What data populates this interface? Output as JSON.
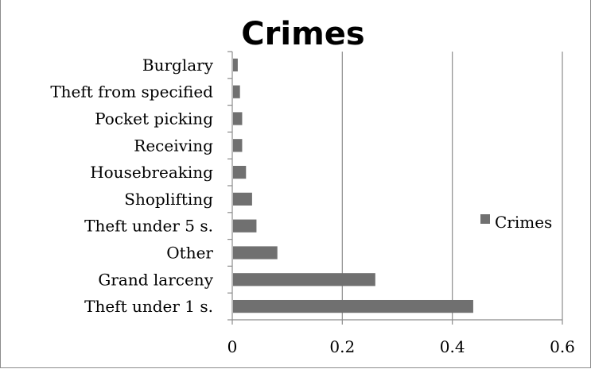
{
  "chart_data": {
    "type": "bar",
    "orientation": "horizontal",
    "title": "Crimes",
    "xlabel": "",
    "ylabel": "",
    "categories": [
      "Theft under 1 s.",
      "Grand larceny",
      "Other",
      "Theft under 5 s.",
      "Shoplifting",
      "Housebreaking",
      "Receiving",
      "Pocket picking",
      "Theft from specified",
      "Burglary"
    ],
    "series": [
      {
        "name": "Crimes",
        "values": [
          0.438,
          0.26,
          0.082,
          0.044,
          0.036,
          0.025,
          0.018,
          0.018,
          0.014,
          0.01
        ]
      }
    ],
    "xlim": [
      0,
      0.6
    ],
    "x_ticks": [
      0,
      0.2,
      0.4,
      0.6
    ],
    "x_tick_labels": [
      "0",
      "0.2",
      "0.4",
      "0.6"
    ],
    "grid": "vertical-major",
    "legend": "right",
    "bar_color": "#707070",
    "grid_color": "#8c8c8c"
  }
}
